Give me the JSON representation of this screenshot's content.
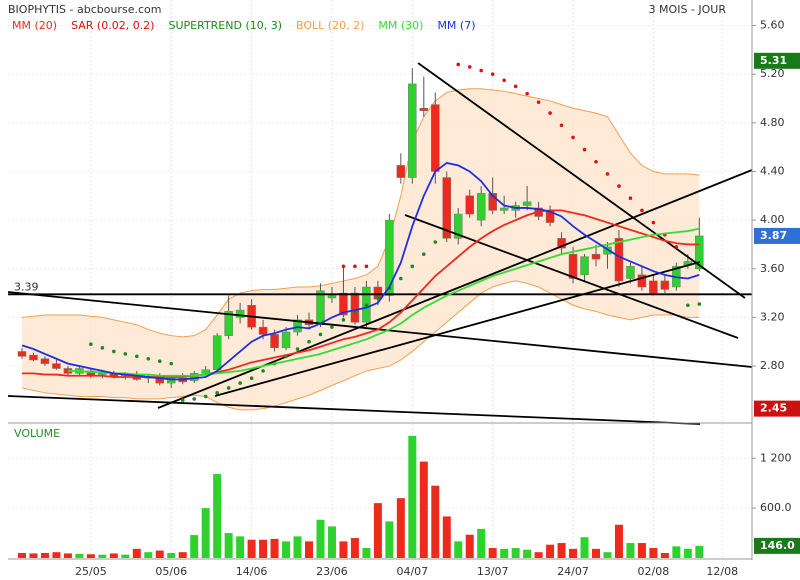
{
  "chart_data": [
    {
      "type": "candlestick",
      "title": "BIOPHYTIS - abcbourse.com",
      "subtitle": "3 MOIS - JOUR",
      "categories": [
        null,
        null,
        null,
        null,
        null,
        null,
        "25/05",
        null,
        null,
        null,
        null,
        null,
        null,
        "05/06",
        null,
        null,
        null,
        null,
        null,
        null,
        "14/06",
        null,
        null,
        null,
        null,
        null,
        null,
        "23/06",
        null,
        null,
        null,
        null,
        null,
        null,
        "04/07",
        null,
        null,
        null,
        null,
        null,
        null,
        "13/07",
        null,
        null,
        null,
        null,
        null,
        null,
        "24/07",
        null,
        null,
        null,
        null,
        null,
        null,
        "02/08",
        null,
        null,
        null,
        null,
        null,
        "12/08"
      ],
      "open": [
        2.92,
        2.89,
        2.86,
        2.82,
        2.78,
        2.74,
        2.76,
        2.73,
        2.74,
        2.72,
        2.73,
        2.7,
        2.71,
        2.66,
        2.7,
        2.68,
        2.74,
        2.77,
        3.05,
        3.2,
        3.3,
        3.12,
        3.06,
        2.95,
        3.08,
        3.18,
        3.14,
        3.36,
        3.4,
        3.4,
        3.16,
        3.45,
        3.38,
        4.45,
        4.35,
        4.92,
        4.95,
        4.35,
        3.85,
        4.2,
        4.0,
        4.22,
        4.08,
        4.08,
        4.12,
        4.1,
        4.08,
        3.85,
        3.72,
        3.55,
        3.72,
        3.72,
        3.85,
        3.52,
        3.55,
        3.5,
        3.5,
        3.45,
        3.63,
        3.6,
        null,
        null
      ],
      "high": [
        2.95,
        2.91,
        2.88,
        2.85,
        2.8,
        2.8,
        2.78,
        2.76,
        2.76,
        2.75,
        2.76,
        2.73,
        2.74,
        2.72,
        2.74,
        2.76,
        2.8,
        3.07,
        3.38,
        3.32,
        3.35,
        3.18,
        3.1,
        3.12,
        3.22,
        3.24,
        3.48,
        3.45,
        3.62,
        3.45,
        3.5,
        3.5,
        4.05,
        4.55,
        5.25,
        5.18,
        5.05,
        4.4,
        4.1,
        4.25,
        4.28,
        4.35,
        4.2,
        4.15,
        4.28,
        4.15,
        4.12,
        3.9,
        3.78,
        3.72,
        3.8,
        3.82,
        3.92,
        3.65,
        3.62,
        3.55,
        3.55,
        3.65,
        3.72,
        4.02,
        null,
        null
      ],
      "low": [
        2.86,
        2.84,
        2.8,
        2.77,
        2.72,
        2.72,
        2.7,
        2.7,
        2.7,
        2.69,
        2.68,
        2.66,
        2.64,
        2.62,
        2.65,
        2.66,
        2.72,
        2.75,
        3.02,
        3.15,
        3.1,
        3.02,
        2.92,
        2.93,
        3.05,
        3.1,
        3.12,
        3.32,
        3.2,
        3.14,
        3.12,
        3.3,
        3.33,
        4.3,
        4.3,
        4.85,
        4.3,
        3.82,
        3.8,
        4.02,
        3.95,
        4.05,
        4.05,
        4.02,
        4.08,
        4.0,
        3.95,
        3.72,
        3.48,
        3.5,
        3.62,
        3.6,
        3.45,
        3.48,
        3.42,
        3.38,
        3.4,
        3.42,
        3.6,
        3.58,
        null,
        null
      ],
      "close": [
        2.88,
        2.85,
        2.82,
        2.78,
        2.74,
        2.78,
        2.72,
        2.74,
        2.71,
        2.73,
        2.69,
        2.71,
        2.66,
        2.7,
        2.67,
        2.74,
        2.77,
        3.05,
        3.25,
        3.26,
        3.12,
        3.06,
        2.95,
        3.08,
        3.18,
        3.14,
        3.42,
        3.38,
        3.22,
        3.16,
        3.45,
        3.35,
        4.0,
        4.35,
        5.12,
        4.9,
        4.4,
        3.85,
        4.05,
        4.05,
        4.22,
        4.08,
        4.1,
        4.12,
        4.15,
        4.03,
        3.98,
        3.77,
        3.52,
        3.7,
        3.68,
        3.78,
        3.5,
        3.62,
        3.45,
        3.4,
        3.43,
        3.62,
        3.66,
        3.87,
        null,
        null
      ],
      "up_color": "#2fd12f",
      "down_color": "#ee2a1e",
      "ylim": [
        2.34,
        5.81
      ],
      "yticks": [
        {
          "value": 2.8,
          "label": "2.80"
        },
        {
          "value": 3.2,
          "label": "3.20"
        },
        {
          "value": 3.6,
          "label": "3.60"
        },
        {
          "value": 4.0,
          "label": "4.00"
        },
        {
          "value": 4.4,
          "label": "4.40"
        },
        {
          "value": 4.8,
          "label": "4.80"
        },
        {
          "value": 5.2,
          "label": "5.20"
        },
        {
          "value": 5.6,
          "label": "5.60"
        }
      ],
      "series": [
        {
          "name": "MM (20)",
          "color": "#ee2a1e",
          "style": "line",
          "values": [
            2.74,
            2.74,
            2.73,
            2.73,
            2.72,
            2.72,
            2.72,
            2.72,
            2.71,
            2.71,
            2.71,
            2.71,
            2.71,
            2.71,
            2.71,
            2.72,
            2.73,
            2.75,
            2.77,
            2.8,
            2.83,
            2.85,
            2.87,
            2.89,
            2.91,
            2.93,
            2.96,
            2.99,
            3.02,
            3.04,
            3.07,
            3.1,
            3.16,
            3.24,
            3.34,
            3.44,
            3.54,
            3.62,
            3.7,
            3.78,
            3.85,
            3.91,
            3.96,
            4.0,
            4.04,
            4.07,
            4.08,
            4.08,
            4.06,
            4.04,
            4.01,
            3.98,
            3.95,
            3.92,
            3.89,
            3.86,
            3.83,
            3.81,
            3.8,
            3.8,
            null,
            null
          ]
        },
        {
          "name": "SAR (0.02, 0.2)",
          "color": "#dd1111",
          "style": "dots",
          "values": [
            null,
            null,
            null,
            null,
            null,
            null,
            null,
            null,
            null,
            null,
            null,
            null,
            null,
            null,
            null,
            null,
            null,
            null,
            null,
            null,
            null,
            null,
            null,
            null,
            null,
            null,
            null,
            null,
            3.62,
            3.62,
            3.62,
            null,
            null,
            null,
            null,
            null,
            null,
            null,
            5.28,
            5.26,
            5.23,
            5.2,
            5.15,
            5.1,
            5.04,
            4.97,
            4.88,
            4.78,
            4.68,
            4.58,
            4.48,
            4.38,
            4.28,
            4.18,
            4.08,
            3.98,
            3.88,
            3.78,
            null,
            null,
            null,
            null
          ]
        },
        {
          "name": "SUPERTREND (10, 3)",
          "color": "#1c8a1c",
          "style": "dots",
          "values": [
            null,
            null,
            null,
            null,
            null,
            null,
            2.98,
            2.95,
            2.92,
            2.9,
            2.88,
            2.86,
            2.84,
            2.82,
            2.52,
            2.53,
            2.55,
            2.58,
            2.62,
            2.66,
            2.7,
            2.76,
            2.82,
            2.88,
            2.94,
            3.0,
            3.06,
            3.12,
            3.18,
            3.24,
            3.3,
            3.36,
            3.44,
            3.52,
            3.62,
            3.72,
            3.82,
            null,
            null,
            null,
            null,
            null,
            null,
            null,
            null,
            null,
            null,
            null,
            null,
            null,
            null,
            null,
            null,
            null,
            null,
            null,
            null,
            null,
            3.3,
            3.31,
            null,
            null
          ]
        },
        {
          "name": "BOLL (20, 2)",
          "color": "#f0a050",
          "style": "band",
          "upper": [
            3.2,
            3.21,
            3.22,
            3.22,
            3.22,
            3.22,
            3.21,
            3.2,
            3.18,
            3.16,
            3.14,
            3.1,
            3.07,
            3.05,
            3.04,
            3.05,
            3.1,
            3.22,
            3.35,
            3.4,
            3.42,
            3.43,
            3.43,
            3.44,
            3.45,
            3.45,
            3.46,
            3.48,
            3.5,
            3.52,
            3.55,
            3.62,
            3.85,
            4.2,
            4.65,
            4.85,
            4.98,
            5.05,
            5.07,
            5.08,
            5.08,
            5.07,
            5.06,
            5.04,
            5.02,
            5.0,
            4.98,
            4.95,
            4.92,
            4.9,
            4.88,
            4.85,
            4.7,
            4.55,
            4.45,
            4.4,
            4.38,
            4.38,
            4.38,
            4.37,
            null,
            null
          ],
          "lower": [
            2.62,
            2.6,
            2.58,
            2.57,
            2.56,
            2.55,
            2.55,
            2.55,
            2.54,
            2.54,
            2.53,
            2.53,
            2.53,
            2.54,
            2.55,
            2.56,
            2.55,
            2.5,
            2.46,
            2.44,
            2.44,
            2.45,
            2.47,
            2.5,
            2.53,
            2.56,
            2.6,
            2.64,
            2.68,
            2.72,
            2.76,
            2.78,
            2.8,
            2.85,
            2.92,
            3.0,
            3.08,
            3.16,
            3.24,
            3.32,
            3.4,
            3.45,
            3.48,
            3.5,
            3.48,
            3.45,
            3.4,
            3.35,
            3.3,
            3.27,
            3.25,
            3.22,
            3.2,
            3.18,
            3.2,
            3.22,
            3.22,
            3.22,
            3.2,
            3.2,
            null,
            null
          ]
        },
        {
          "name": "MM (30)",
          "color": "#33dd33",
          "style": "line",
          "values": [
            null,
            null,
            null,
            null,
            2.76,
            2.76,
            2.75,
            2.75,
            2.74,
            2.74,
            2.73,
            2.73,
            2.72,
            2.72,
            2.72,
            2.72,
            2.73,
            2.74,
            2.75,
            2.76,
            2.78,
            2.8,
            2.82,
            2.84,
            2.86,
            2.88,
            2.9,
            2.93,
            2.96,
            2.99,
            3.02,
            3.06,
            3.1,
            3.15,
            3.22,
            3.28,
            3.33,
            3.38,
            3.42,
            3.46,
            3.5,
            3.54,
            3.57,
            3.6,
            3.63,
            3.66,
            3.69,
            3.72,
            3.74,
            3.76,
            3.78,
            3.8,
            3.82,
            3.84,
            3.86,
            3.88,
            3.89,
            3.9,
            3.91,
            3.93,
            null,
            null
          ]
        },
        {
          "name": "MM (7)",
          "color": "#1f2fe0",
          "style": "line",
          "values": [
            2.97,
            2.94,
            2.9,
            2.86,
            2.82,
            2.8,
            2.78,
            2.76,
            2.74,
            2.73,
            2.72,
            2.71,
            2.7,
            2.69,
            2.69,
            2.7,
            2.71,
            2.76,
            2.84,
            2.92,
            3.0,
            3.05,
            3.07,
            3.1,
            3.12,
            3.11,
            3.15,
            3.2,
            3.24,
            3.26,
            3.28,
            3.32,
            3.45,
            3.65,
            3.95,
            4.2,
            4.4,
            4.47,
            4.45,
            4.4,
            4.32,
            4.2,
            4.12,
            4.1,
            4.1,
            4.09,
            4.07,
            4.03,
            3.95,
            3.88,
            3.82,
            3.76,
            3.7,
            3.66,
            3.62,
            3.58,
            3.55,
            3.53,
            3.52,
            3.55,
            null,
            null
          ]
        }
      ],
      "level": 3.39,
      "markers": [
        {
          "value": 5.31,
          "color": "#1a7a1a"
        },
        {
          "value": 3.87,
          "color": "#2f6fd6"
        },
        {
          "value": 2.45,
          "color": "#cc1111"
        }
      ],
      "grid": true
    },
    {
      "type": "bar",
      "title": "VOLUME",
      "values": [
        60,
        55,
        60,
        70,
        55,
        50,
        45,
        40,
        55,
        40,
        110,
        70,
        90,
        60,
        70,
        276,
        600,
        1010,
        300,
        260,
        220,
        220,
        230,
        200,
        260,
        200,
        460,
        380,
        200,
        240,
        120,
        660,
        440,
        720,
        1470,
        1160,
        870,
        500,
        200,
        280,
        350,
        120,
        110,
        120,
        100,
        70,
        160,
        180,
        110,
        250,
        110,
        70,
        400,
        180,
        180,
        120,
        60,
        140,
        110,
        146,
        null,
        null
      ],
      "ylim": [
        0,
        1600
      ],
      "yticks": [
        {
          "value": 600,
          "label": "600.0"
        },
        {
          "value": 1200,
          "label": "1 200"
        }
      ],
      "marker": {
        "value": 146,
        "label": "146.0",
        "color": "#1a7a1a"
      },
      "grid": true
    }
  ]
}
